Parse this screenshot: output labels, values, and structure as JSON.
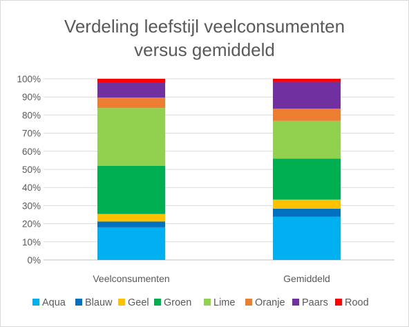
{
  "chart_data": {
    "type": "bar",
    "stacked": true,
    "title_lines": [
      "Verdeling leefstijl veelconsumenten",
      "versus gemiddeld"
    ],
    "categories": [
      "Veelconsumenten",
      "Gemiddeld"
    ],
    "ylim": [
      0,
      100
    ],
    "yticks": [
      0,
      10,
      20,
      30,
      40,
      50,
      60,
      70,
      80,
      90,
      100
    ],
    "ytick_labels": [
      "0%",
      "10%",
      "20%",
      "30%",
      "40%",
      "50%",
      "60%",
      "70%",
      "80%",
      "90%",
      "100%"
    ],
    "grid": true,
    "legend_position": "bottom",
    "series": [
      {
        "name": "Aqua",
        "color": "#00b0f0",
        "values": [
          18.0,
          23.8
        ]
      },
      {
        "name": "Blauw",
        "color": "#0070c0",
        "values": [
          3.2,
          4.5
        ]
      },
      {
        "name": "Geel",
        "color": "#ffc000",
        "values": [
          4.2,
          5.0
        ]
      },
      {
        "name": "Groen",
        "color": "#00b050",
        "values": [
          26.6,
          22.6
        ]
      },
      {
        "name": "Lime",
        "color": "#92d050",
        "values": [
          31.9,
          20.9
        ]
      },
      {
        "name": "Oranje",
        "color": "#ed7d31",
        "values": [
          5.8,
          6.7
        ]
      },
      {
        "name": "Paars",
        "color": "#7030a0",
        "values": [
          8.4,
          14.8
        ]
      },
      {
        "name": "Rood",
        "color": "#ff0000",
        "values": [
          1.9,
          1.7
        ]
      }
    ]
  }
}
